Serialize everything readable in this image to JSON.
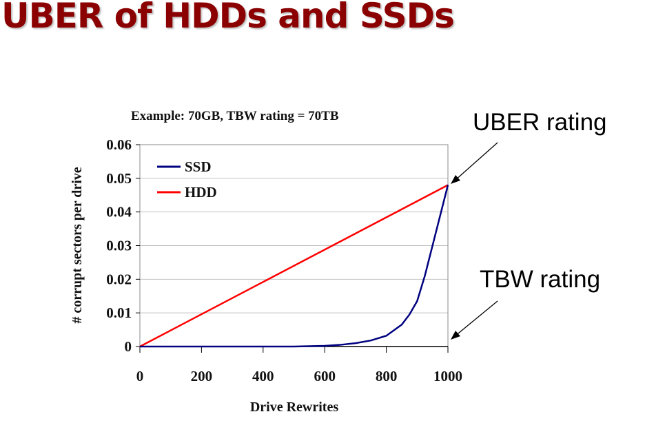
{
  "slide": {
    "title": "UBER of HDDs and SSDs"
  },
  "annotations": {
    "uber": "UBER rating",
    "tbw": "TBW rating"
  },
  "chart_data": {
    "type": "line",
    "title": "Example: 70GB, TBW rating = 70TB",
    "xlabel": "Drive Rewrites",
    "ylabel": "# corrupt sectors per drive",
    "xlim": [
      0,
      1000
    ],
    "ylim": [
      0,
      0.06
    ],
    "x_ticks": [
      "0",
      "200",
      "400",
      "600",
      "800",
      "1000"
    ],
    "y_ticks": [
      "0",
      "0.01",
      "0.02",
      "0.03",
      "0.04",
      "0.05",
      "0.06"
    ],
    "grid": "horizontal",
    "legend_position": "upper-left-inside",
    "colors": {
      "SSD": "#000080",
      "HDD": "#ff0000"
    },
    "series": [
      {
        "name": "SSD",
        "x": [
          0,
          100,
          200,
          300,
          400,
          500,
          600,
          650,
          700,
          750,
          800,
          850,
          875,
          900,
          925,
          950,
          975,
          1000
        ],
        "y": [
          0,
          0,
          0,
          0,
          0,
          0,
          0.0002,
          0.0005,
          0.001,
          0.0018,
          0.0032,
          0.0065,
          0.0095,
          0.0135,
          0.021,
          0.03,
          0.039,
          0.048
        ]
      },
      {
        "name": "HDD",
        "x": [
          0,
          1000
        ],
        "y": [
          0,
          0.048
        ]
      }
    ]
  }
}
